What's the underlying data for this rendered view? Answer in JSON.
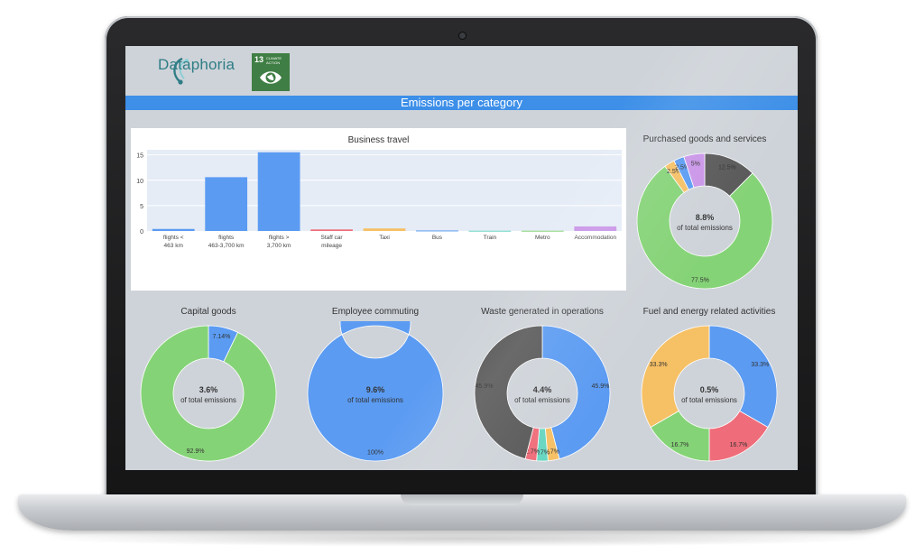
{
  "brand": {
    "name": "Dataphoria"
  },
  "sdg": {
    "number": "13",
    "label": "CLIMATE ACTION"
  },
  "banner": {
    "title": "Emissions per category"
  },
  "colors": {
    "blue": "#5b9bf2",
    "green": "#85d377",
    "darkgray": "#595959",
    "orange": "#f6c065",
    "red": "#ef6d7a",
    "teal": "#67d6c1",
    "purple": "#c995e8",
    "accent": "#3d8fe8",
    "hole": "#ced3d9"
  },
  "chart_data": [
    {
      "type": "bar",
      "title": "Business travel",
      "categories": [
        "flights <\n463 km",
        "flights\n463-3,700 km",
        "flights >\n3,700 km",
        "Staff car\nmileage",
        "Taxi",
        "Bus",
        "Train",
        "Metro",
        "Accommodation"
      ],
      "values": [
        0.4,
        10.6,
        15.5,
        0.3,
        0.5,
        0.1,
        0.05,
        0.05,
        0.9
      ],
      "bar_colors": [
        "#5b9bf2",
        "#5b9bf2",
        "#5b9bf2",
        "#ef6d7a",
        "#f6c065",
        "#5b9bf2",
        "#67d6c1",
        "#85d377",
        "#c995e8"
      ],
      "yticks": [
        0,
        5,
        10,
        15
      ],
      "ylim": [
        0,
        16
      ]
    },
    {
      "type": "pie",
      "title": "Purchased goods and services",
      "center_value": "8.8%",
      "center_label": "of total emissions",
      "slices": [
        {
          "label": "12.5%",
          "value": 12.5,
          "color": "#595959"
        },
        {
          "label": "77.5%",
          "value": 77.5,
          "color": "#85d377"
        },
        {
          "label": "2.5%",
          "value": 2.5,
          "color": "#f6c065"
        },
        {
          "label": "2.5%",
          "value": 2.5,
          "color": "#5b9bf2"
        },
        {
          "label": "5%",
          "value": 5,
          "color": "#c995e8"
        }
      ]
    },
    {
      "type": "pie",
      "title": "Capital goods",
      "center_value": "3.6%",
      "center_label": "of total emissions",
      "slices": [
        {
          "label": "7.14%",
          "value": 7.14,
          "color": "#5b9bf2"
        },
        {
          "label": "92.9%",
          "value": 92.86,
          "color": "#85d377"
        }
      ]
    },
    {
      "type": "pie",
      "title": "Employee commuting",
      "center_value": "9.6%",
      "center_label": "of total emissions",
      "slices": [
        {
          "label": "100%",
          "value": 100,
          "color": "#5b9bf2"
        }
      ]
    },
    {
      "type": "pie",
      "title": "Waste generated in operations",
      "center_value": "4.4%",
      "center_label": "of total emissions",
      "slices": [
        {
          "label": "45.9%",
          "value": 45.9,
          "color": "#5b9bf2"
        },
        {
          "label": "2.7%",
          "value": 2.7,
          "color": "#f6c065"
        },
        {
          "label": "2.7%",
          "value": 2.7,
          "color": "#67d6c1"
        },
        {
          "label": "2.7%",
          "value": 2.7,
          "color": "#ef6d7a"
        },
        {
          "label": "45.9%",
          "value": 45.9,
          "color": "#595959"
        }
      ]
    },
    {
      "type": "pie",
      "title": "Fuel and energy related activities",
      "center_value": "0.5%",
      "center_label": "of total emissions",
      "slices": [
        {
          "label": "33.3%",
          "value": 33.33,
          "color": "#5b9bf2"
        },
        {
          "label": "16.7%",
          "value": 16.67,
          "color": "#ef6d7a"
        },
        {
          "label": "16.7%",
          "value": 16.67,
          "color": "#85d377"
        },
        {
          "label": "33.3%",
          "value": 33.33,
          "color": "#f6c065"
        }
      ]
    }
  ]
}
